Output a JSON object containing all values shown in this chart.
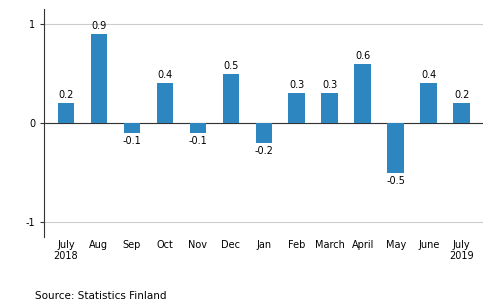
{
  "categories": [
    "July\n2018",
    "Aug",
    "Sep",
    "Oct",
    "Nov",
    "Dec",
    "Jan",
    "Feb",
    "March",
    "April",
    "May",
    "June",
    "July\n2019"
  ],
  "values": [
    0.2,
    0.9,
    -0.1,
    0.4,
    -0.1,
    0.5,
    -0.2,
    0.3,
    0.3,
    0.6,
    -0.5,
    0.4,
    0.2
  ],
  "bar_color": "#2e86c1",
  "ylim": [
    -1.15,
    1.15
  ],
  "yticks": [
    -1,
    0,
    1
  ],
  "source_text": "Source: Statistics Finland",
  "background_color": "#ffffff",
  "label_fontsize": 7,
  "tick_fontsize": 7,
  "source_fontsize": 7.5,
  "bar_width": 0.5,
  "grid_color": "#cccccc",
  "spine_color": "#333333"
}
